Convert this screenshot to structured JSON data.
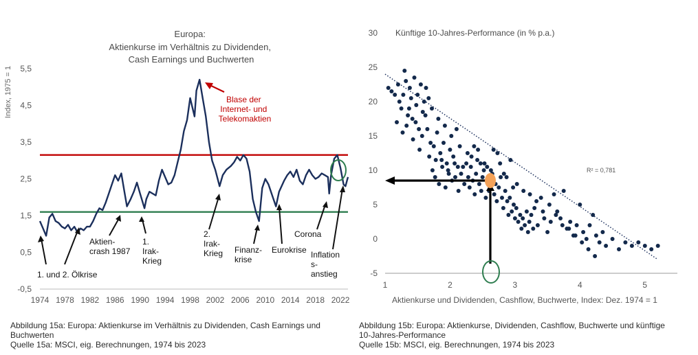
{
  "chart_data": [
    {
      "type": "line",
      "title_lines": [
        "Europa:",
        "Aktienkurse im Verhältnis zu Dividenden,",
        "Cash Earnings und Buchwerten"
      ],
      "ylabel": "Index, 1975 = 1",
      "xlabel": "",
      "ylim": [
        -0.5,
        5.5
      ],
      "xlim": [
        1974,
        2023.2
      ],
      "y_ticks": [
        "5,5",
        "4,5",
        "3,5",
        "2,5",
        "1,5",
        "0,5",
        "-0,5"
      ],
      "y_tick_values": [
        5.5,
        4.5,
        3.5,
        2.5,
        1.5,
        0.5,
        -0.5
      ],
      "x_ticks": [
        "1974",
        "1978",
        "1982",
        "1986",
        "1990",
        "1994",
        "1998",
        "2002",
        "2006",
        "2010",
        "2014",
        "2018",
        "2022"
      ],
      "x_tick_values": [
        1974,
        1978,
        1982,
        1986,
        1990,
        1994,
        1998,
        2002,
        2006,
        2010,
        2014,
        2018,
        2022
      ],
      "reference_lines": [
        {
          "value": 3.15,
          "color": "#c00000"
        },
        {
          "value": 1.6,
          "color": "#2e7d4f"
        }
      ],
      "series": [
        {
          "color": "#1b2f5c",
          "x": [
            1974.0,
            1974.5,
            1975.0,
            1975.5,
            1976.0,
            1976.5,
            1977.0,
            1977.5,
            1978.0,
            1978.5,
            1979.0,
            1979.5,
            1980.0,
            1980.5,
            1981.0,
            1981.5,
            1982.0,
            1982.5,
            1983.0,
            1983.5,
            1984.0,
            1984.5,
            1985.0,
            1985.5,
            1986.0,
            1986.5,
            1987.0,
            1987.5,
            1987.9,
            1988.5,
            1989.0,
            1989.5,
            1990.0,
            1990.7,
            1991.0,
            1991.5,
            1992.0,
            1992.5,
            1993.0,
            1993.5,
            1994.0,
            1994.5,
            1995.0,
            1995.5,
            1996.0,
            1996.5,
            1997.0,
            1997.5,
            1998.0,
            1998.7,
            1999.0,
            1999.5,
            2000.0,
            2000.5,
            2001.0,
            2001.5,
            2002.0,
            2002.7,
            2003.2,
            2003.8,
            2004.5,
            2005.0,
            2005.5,
            2006.0,
            2006.5,
            2007.0,
            2007.5,
            2008.0,
            2008.5,
            2009.0,
            2009.5,
            2010.0,
            2010.5,
            2011.0,
            2011.7,
            2012.2,
            2013.0,
            2013.5,
            2014.0,
            2014.5,
            2015.0,
            2015.5,
            2016.0,
            2016.5,
            2017.0,
            2017.5,
            2018.0,
            2018.5,
            2019.0,
            2019.5,
            2020.0,
            2020.2,
            2020.5,
            2021.0,
            2021.5,
            2022.0,
            2022.5,
            2022.8,
            2023.2
          ],
          "y": [
            1.35,
            1.15,
            0.95,
            1.45,
            1.55,
            1.35,
            1.3,
            1.2,
            1.15,
            1.25,
            1.1,
            1.2,
            1.05,
            1.15,
            1.1,
            1.2,
            1.2,
            1.35,
            1.55,
            1.7,
            1.65,
            1.85,
            2.1,
            2.35,
            2.6,
            2.45,
            2.65,
            2.15,
            1.75,
            1.95,
            2.15,
            2.4,
            2.1,
            1.7,
            1.95,
            2.15,
            2.1,
            2.05,
            2.45,
            2.75,
            2.55,
            2.35,
            2.4,
            2.6,
            2.95,
            3.3,
            3.8,
            4.1,
            4.7,
            4.2,
            4.9,
            5.2,
            4.7,
            4.2,
            3.5,
            3.0,
            2.75,
            2.3,
            2.6,
            2.75,
            2.85,
            2.95,
            3.1,
            3.0,
            3.15,
            3.05,
            2.7,
            1.95,
            1.6,
            1.35,
            2.25,
            2.5,
            2.35,
            2.1,
            1.75,
            2.15,
            2.45,
            2.6,
            2.7,
            2.55,
            2.75,
            2.45,
            2.35,
            2.6,
            2.75,
            2.6,
            2.5,
            2.55,
            2.65,
            2.6,
            2.55,
            2.1,
            2.6,
            3.05,
            3.15,
            2.8,
            2.35,
            2.3,
            2.55
          ]
        }
      ],
      "annotations": [
        {
          "label": "Blase der Internet- und Telekomaktien",
          "color": "#c00000"
        },
        {
          "label": "1. und 2. Ölkrise"
        },
        {
          "label": "Aktien-crash 1987"
        },
        {
          "label": "1. Irak-Krieg"
        },
        {
          "label": "2. Irak-Krieg"
        },
        {
          "label": "Finanz-krise"
        },
        {
          "label": "Eurokrise"
        },
        {
          "label": "Corona"
        },
        {
          "label": "Inflation-s-anstieg"
        }
      ]
    },
    {
      "type": "scatter",
      "title": "Künftige 10-Jahres-Performance (in % p.a.)",
      "xlabel": "Aktienkurse und Dividenden, Cashflow, Buchwerte, Index: Dez. 1974 = 1",
      "ylabel": "Künftige 10-Jahres-Performance (in % p.a.)",
      "xlim": [
        1,
        5.5
      ],
      "ylim": [
        -5,
        30
      ],
      "x_ticks": [
        "1",
        "2",
        "3",
        "4",
        "5"
      ],
      "x_tick_values": [
        1,
        2,
        3,
        4,
        5
      ],
      "y_ticks": [
        "30",
        "25",
        "20",
        "15",
        "10",
        "5",
        "0",
        "-5"
      ],
      "y_tick_values": [
        30,
        25,
        20,
        15,
        10,
        5,
        0,
        -5
      ],
      "r_squared_label": "R² = 0,781",
      "trendline": {
        "x": [
          1.0,
          5.2
        ],
        "y": [
          24.0,
          -3.0
        ],
        "style": "dotted"
      },
      "highlight_point": {
        "x": 2.62,
        "y": 8.5,
        "color": "#f4a259"
      },
      "points_color": "#13294b",
      "series": [
        {
          "x": [
            1.05,
            1.1,
            1.15,
            1.2,
            1.22,
            1.25,
            1.28,
            1.3,
            1.32,
            1.35,
            1.38,
            1.4,
            1.42,
            1.45,
            1.48,
            1.5,
            1.52,
            1.55,
            1.58,
            1.6,
            1.18,
            1.27,
            1.33,
            1.37,
            1.43,
            1.47,
            1.53,
            1.57,
            1.62,
            1.65,
            1.68,
            1.7,
            1.72,
            1.75,
            1.78,
            1.8,
            1.82,
            1.85,
            1.88,
            1.9,
            1.92,
            1.95,
            1.98,
            2.0,
            2.02,
            2.05,
            2.08,
            2.1,
            2.12,
            2.15,
            1.73,
            1.77,
            1.83,
            1.87,
            1.93,
            1.97,
            2.03,
            2.07,
            2.13,
            2.17,
            2.2,
            2.22,
            2.25,
            2.28,
            2.3,
            2.32,
            2.35,
            2.38,
            2.4,
            2.42,
            2.45,
            2.48,
            2.5,
            2.52,
            2.55,
            2.58,
            2.6,
            2.65,
            2.68,
            2.7,
            2.72,
            2.75,
            2.78,
            2.8,
            2.82,
            2.85,
            2.88,
            2.9,
            2.92,
            2.95,
            2.98,
            3.0,
            3.02,
            3.05,
            3.08,
            3.1,
            3.12,
            3.15,
            3.18,
            3.2,
            3.22,
            3.25,
            3.28,
            3.3,
            3.35,
            3.4,
            3.45,
            3.5,
            3.55,
            3.6,
            3.65,
            3.7,
            3.75,
            3.8,
            3.85,
            3.9,
            3.95,
            4.0,
            4.05,
            4.1,
            4.15,
            4.2,
            4.25,
            4.3,
            4.35,
            4.4,
            4.5,
            4.6,
            4.7,
            4.8,
            4.9,
            5.0,
            5.1,
            5.2,
            2.33,
            2.43,
            2.53,
            2.63,
            2.73,
            2.83,
            2.93,
            3.03,
            3.13,
            3.23,
            3.33,
            3.43,
            3.53,
            3.63,
            3.73,
            3.83,
            3.93,
            4.03,
            4.13,
            4.23,
            2.27,
            2.37,
            2.47,
            2.57,
            2.67,
            2.77,
            2.87,
            2.97,
            1.63,
            1.67
          ],
          "y": [
            22.0,
            21.5,
            21.0,
            22.5,
            20.0,
            19.0,
            21.0,
            24.5,
            23.0,
            18.0,
            22.0,
            20.5,
            17.5,
            23.5,
            19.5,
            21.0,
            16.0,
            22.5,
            18.5,
            20.0,
            17.0,
            15.5,
            16.5,
            19.0,
            14.5,
            17.0,
            13.0,
            15.0,
            18.0,
            16.0,
            12.0,
            14.0,
            19.0,
            13.5,
            11.5,
            15.5,
            17.5,
            12.5,
            10.5,
            14.0,
            16.5,
            11.0,
            9.5,
            13.0,
            15.0,
            12.0,
            9.0,
            16.0,
            10.5,
            13.5,
            10.0,
            9.0,
            8.0,
            11.5,
            7.5,
            10.0,
            8.5,
            11.0,
            7.0,
            9.5,
            10.5,
            8.0,
            11.0,
            9.0,
            7.5,
            10.5,
            8.5,
            6.5,
            9.5,
            11.5,
            8.0,
            7.0,
            9.0,
            10.0,
            6.0,
            8.5,
            7.0,
            9.5,
            6.5,
            8.0,
            5.5,
            7.5,
            9.0,
            6.0,
            4.5,
            7.0,
            5.5,
            3.5,
            6.0,
            4.0,
            5.0,
            3.0,
            4.5,
            2.5,
            3.5,
            1.5,
            3.0,
            2.0,
            4.0,
            1.0,
            2.5,
            3.5,
            1.5,
            4.5,
            2.0,
            6.0,
            3.0,
            1.0,
            2.5,
            6.5,
            4.0,
            3.0,
            7.0,
            1.5,
            2.5,
            0.5,
            2.0,
            5.0,
            1.0,
            0.0,
            2.0,
            3.5,
            0.5,
            -0.5,
            1.0,
            -1.0,
            0.0,
            -1.5,
            -0.5,
            -1.0,
            -0.5,
            -1.0,
            -1.5,
            -1.0,
            12.0,
            13.0,
            11.0,
            10.0,
            12.5,
            9.5,
            11.5,
            8.0,
            7.0,
            6.5,
            5.5,
            4.0,
            5.0,
            3.5,
            2.0,
            1.5,
            0.5,
            -0.5,
            -1.5,
            -2.5,
            12.5,
            13.5,
            11.0,
            10.5,
            13.0,
            11.0,
            9.0,
            7.5,
            22.0,
            20.5
          ]
        }
      ],
      "annotations": [
        {
          "type": "arrow",
          "from_x": 2.62,
          "from_y": -5,
          "to_x": 2.62,
          "to_y": 8.5
        },
        {
          "type": "arrow",
          "from_x": 2.62,
          "from_y": 8.5,
          "to_x": 1.0,
          "to_y": 8.5
        }
      ]
    }
  ],
  "captions": {
    "left": [
      "Abbildung 15a: Europa: Aktienkurse im Verhältnis zu Dividenden, Cash Earnings und",
      "Buchwerten",
      "Quelle 15a: MSCI, eig. Berechnungen, 1974 bis 2023"
    ],
    "right": [
      "Abbildung 15b: Europa: Aktienkurse, Dividenden, Cashflow, Buchwerte und künftige",
      "10-Jahres-Performance",
      "Quelle 15b: MSCI, eig. Berechnungen, 1974 bis 2023"
    ]
  }
}
